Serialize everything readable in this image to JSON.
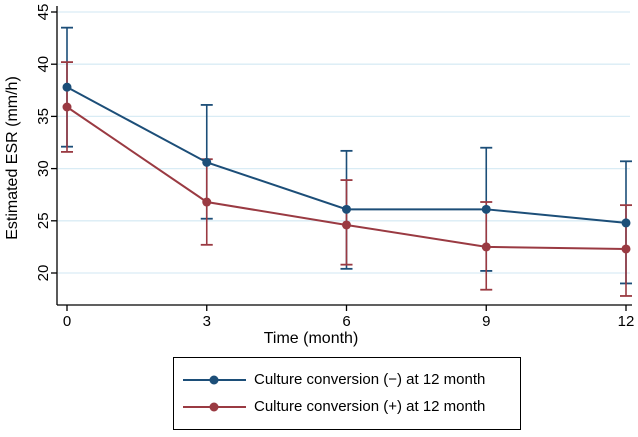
{
  "chart_data": {
    "type": "line",
    "title": "",
    "xlabel": "Time (month)",
    "ylabel": "Estimated ESR (mm/h)",
    "x": [
      0,
      3,
      6,
      9,
      12
    ],
    "x_ticks": [
      0,
      3,
      6,
      9,
      12
    ],
    "y_ticks": [
      20,
      25,
      30,
      35,
      40,
      45
    ],
    "xlim": [
      -0.3,
      12.15
    ],
    "ylim": [
      16.9,
      45.6
    ],
    "grid": "horizontal-only",
    "gridline_color": "#d9ecf5",
    "axis_color": "#000000",
    "legend_position": "bottom-center-boxed",
    "marker": "filled-circle",
    "error_bars": true,
    "series": [
      {
        "name": "Culture conversion (−) at 12 month",
        "color": "#1c4e78",
        "values": [
          37.8,
          30.6,
          26.1,
          26.1,
          24.8
        ],
        "ci_low": [
          32.1,
          25.2,
          20.4,
          20.2,
          19.0
        ],
        "ci_high": [
          43.5,
          36.1,
          31.7,
          32.0,
          30.7
        ]
      },
      {
        "name": "Culture conversion (+) at 12 month",
        "color": "#9a3a42",
        "values": [
          35.9,
          26.8,
          24.6,
          22.5,
          22.3
        ],
        "ci_low": [
          31.6,
          22.7,
          20.8,
          18.4,
          17.8
        ],
        "ci_high": [
          40.2,
          30.9,
          28.9,
          26.8,
          26.5
        ]
      }
    ]
  }
}
